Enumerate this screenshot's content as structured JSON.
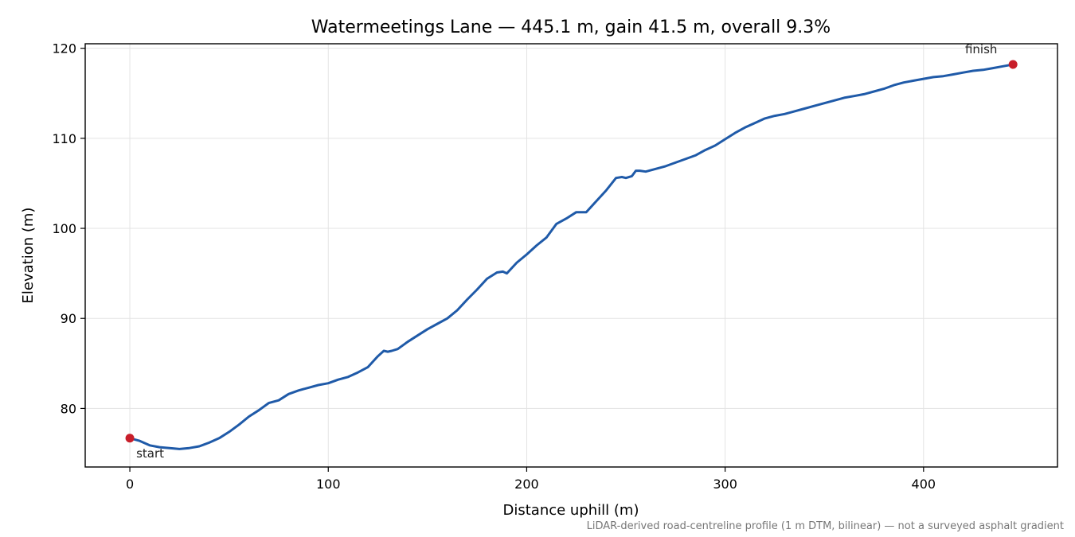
{
  "chart_data": {
    "type": "line",
    "title": "Watermeetings Lane — 445.1 m, gain 41.5 m, overall 9.3%",
    "xlabel": "Distance uphill (m)",
    "ylabel": "Elevation (m)",
    "xlim": [
      -22.5,
      467.5
    ],
    "ylim": [
      73.5,
      120.5
    ],
    "x_ticks": [
      0,
      100,
      200,
      300,
      400
    ],
    "y_ticks": [
      80,
      90,
      100,
      110,
      120
    ],
    "grid": true,
    "line_color": "#1f5aa8",
    "marker_color": "#c81e2a",
    "series": [
      {
        "x": [
          0,
          5,
          10,
          15,
          20,
          25,
          30,
          35,
          40,
          45,
          50,
          55,
          60,
          65,
          70,
          75,
          80,
          85,
          90,
          95,
          100,
          105,
          110,
          115,
          120,
          125,
          128,
          130,
          132,
          135,
          140,
          145,
          150,
          155,
          160,
          165,
          170,
          175,
          180,
          185,
          188,
          190,
          195,
          200,
          205,
          210,
          215,
          220,
          225,
          230,
          235,
          240,
          245,
          248,
          250,
          253,
          255,
          257,
          260,
          265,
          270,
          275,
          280,
          285,
          290,
          295,
          300,
          305,
          310,
          315,
          320,
          325,
          330,
          335,
          340,
          345,
          350,
          355,
          360,
          365,
          370,
          375,
          380,
          385,
          390,
          395,
          400,
          405,
          410,
          415,
          420,
          425,
          430,
          435,
          440,
          445.1
        ],
        "y": [
          76.7,
          76.4,
          75.9,
          75.7,
          75.6,
          75.5,
          75.6,
          75.8,
          76.2,
          76.7,
          77.4,
          78.2,
          79.1,
          79.8,
          80.6,
          80.9,
          81.6,
          82.0,
          82.3,
          82.6,
          82.8,
          83.2,
          83.5,
          84.0,
          84.6,
          85.8,
          86.4,
          86.3,
          86.4,
          86.6,
          87.4,
          88.1,
          88.8,
          89.4,
          90.0,
          90.9,
          92.1,
          93.2,
          94.4,
          95.1,
          95.2,
          95.0,
          96.2,
          97.1,
          98.1,
          99.0,
          100.5,
          101.1,
          101.8,
          101.8,
          103.0,
          104.2,
          105.6,
          105.7,
          105.6,
          105.8,
          106.4,
          106.4,
          106.3,
          106.6,
          106.9,
          107.3,
          107.7,
          108.1,
          108.7,
          109.2,
          109.9,
          110.6,
          111.2,
          111.7,
          112.2,
          112.5,
          112.7,
          113.0,
          113.3,
          113.6,
          113.9,
          114.2,
          114.5,
          114.7,
          114.9,
          115.2,
          115.5,
          115.9,
          116.2,
          116.4,
          116.6,
          116.8,
          116.9,
          117.1,
          117.3,
          117.5,
          117.6,
          117.8,
          118.0,
          118.2
        ]
      }
    ],
    "annotations": [
      {
        "text": "start",
        "x": 0,
        "y": 76.7
      },
      {
        "text": "finish",
        "x": 445.1,
        "y": 118.2
      }
    ],
    "footnote": "LiDAR-derived road-centreline profile (1 m DTM, bilinear) — not a surveyed asphalt gradient"
  }
}
